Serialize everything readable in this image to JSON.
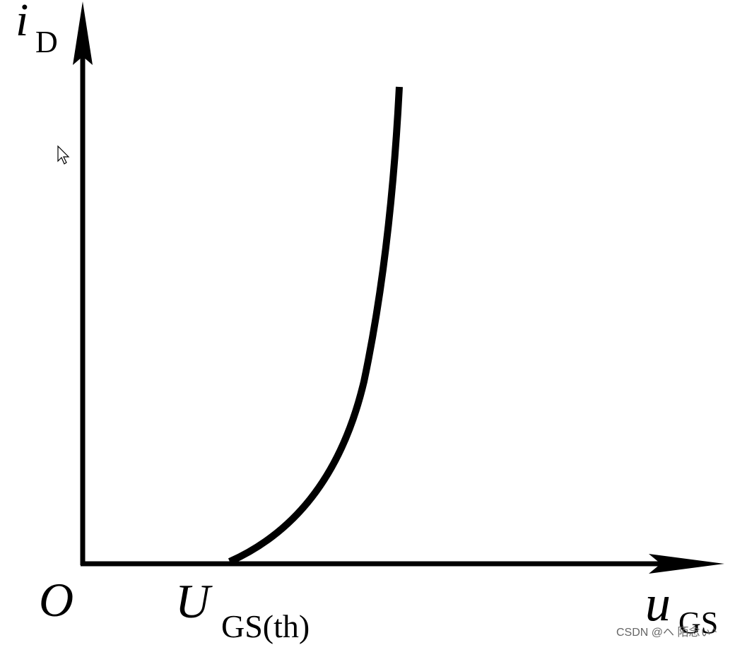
{
  "y_axis": {
    "symbol": "i",
    "subscript": "D"
  },
  "x_axis": {
    "symbol": "u",
    "subscript": "GS"
  },
  "origin": "O",
  "threshold": {
    "symbol": "U",
    "subscript": "GS(th)"
  },
  "watermark": "CSDN @ヘ 陌念ぃ^"
}
